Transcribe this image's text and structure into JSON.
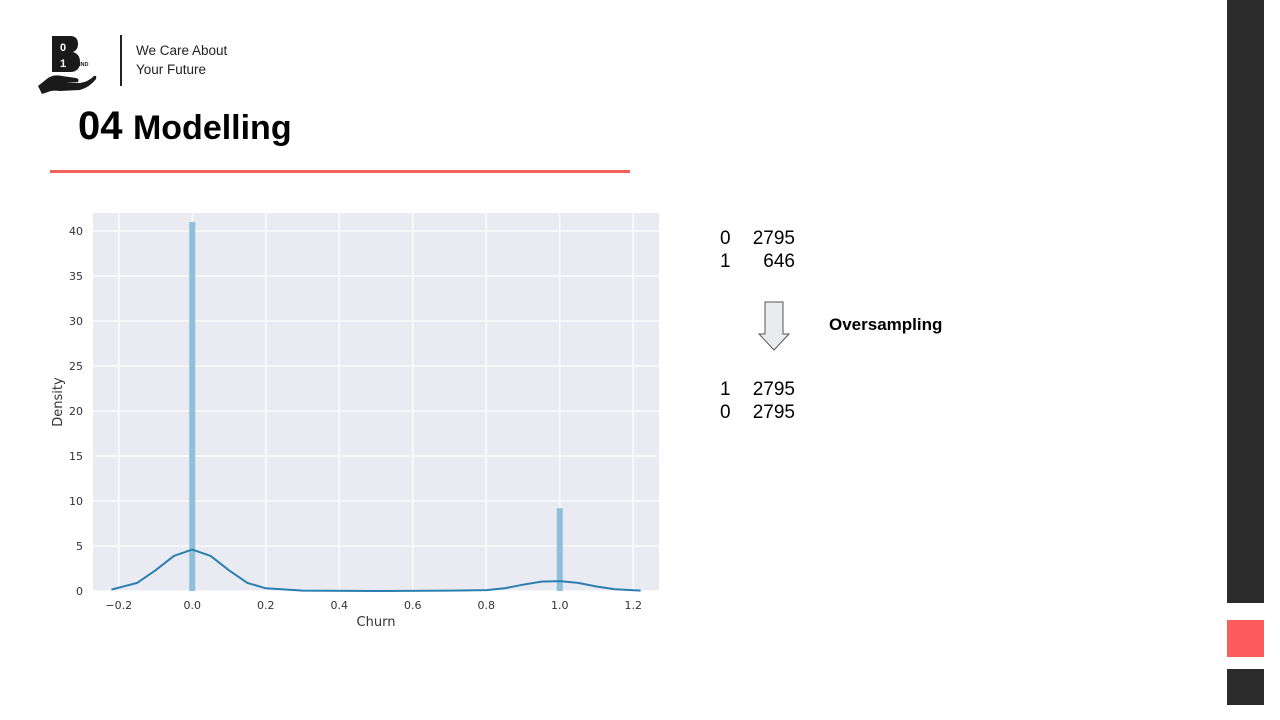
{
  "header": {
    "logo_icon": "hand-holding-binary-b-logo",
    "logo_text": "B 0 1 IND",
    "tagline_line1": "We Care About",
    "tagline_line2": "Your Future"
  },
  "title": {
    "number": "04",
    "text": "Modelling"
  },
  "colors": {
    "accent_red": "#f4605c",
    "sidebar_dark": "#2b2b2b",
    "sidebar_red": "#fd5c5d",
    "bar_color": "#8fc0da",
    "kde_color": "#2a7fb0",
    "plot_bg": "#eaeaf2"
  },
  "chart_data": {
    "type": "bar",
    "subtype": "histogram-with-kde",
    "title": "",
    "xlabel": "Churn",
    "ylabel": "Density",
    "xlim": [
      -0.27,
      1.27
    ],
    "ylim": [
      0,
      42
    ],
    "xticks": [
      -0.2,
      0.0,
      0.2,
      0.4,
      0.6,
      0.8,
      1.0,
      1.2
    ],
    "xtick_labels": [
      "−0.2",
      "0.0",
      "0.2",
      "0.4",
      "0.6",
      "0.8",
      "1.0",
      "1.2"
    ],
    "yticks": [
      0,
      5,
      10,
      15,
      20,
      25,
      30,
      35,
      40
    ],
    "ytick_labels": [
      "0",
      "5",
      "10",
      "15",
      "20",
      "25",
      "30",
      "35",
      "40"
    ],
    "grid": true,
    "bars": [
      {
        "x": 0.0,
        "value": 41.0
      },
      {
        "x": 1.0,
        "value": 9.2
      }
    ],
    "kde": {
      "x": [
        -0.22,
        -0.15,
        -0.1,
        -0.05,
        0.0,
        0.05,
        0.1,
        0.15,
        0.2,
        0.3,
        0.5,
        0.7,
        0.8,
        0.85,
        0.9,
        0.95,
        1.0,
        1.05,
        1.1,
        1.15,
        1.22
      ],
      "y": [
        0.15,
        0.9,
        2.3,
        3.9,
        4.6,
        3.9,
        2.3,
        0.9,
        0.3,
        0.05,
        0.0,
        0.05,
        0.1,
        0.3,
        0.7,
        1.05,
        1.1,
        0.9,
        0.5,
        0.2,
        0.05
      ]
    }
  },
  "counts_before": [
    {
      "key": "0",
      "value": "2795"
    },
    {
      "key": "1",
      "value": "646"
    }
  ],
  "arrow_icon": "down-arrow-icon",
  "oversampling_label": "Oversampling",
  "counts_after": [
    {
      "key": "1",
      "value": "2795"
    },
    {
      "key": "0",
      "value": "2795"
    }
  ]
}
